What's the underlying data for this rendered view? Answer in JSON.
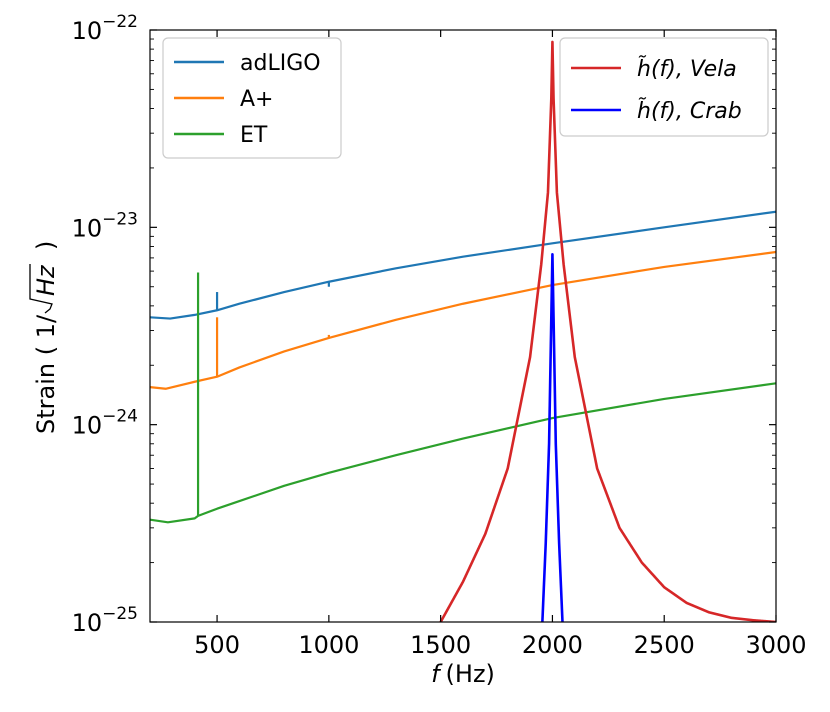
{
  "chart_data": {
    "type": "line",
    "title": "",
    "xlabel": "f (Hz)",
    "xlabel_var": "f",
    "xlabel_unit": "(Hz)",
    "ylabel": "Strain ( 1/ √Hz )",
    "ylabel_prefix": "Strain ( 1/",
    "ylabel_radicand": "Hz",
    "ylabel_suffix": ")",
    "xlim": [
      200,
      3000
    ],
    "ylim": [
      1e-25,
      1e-22
    ],
    "yscale": "log",
    "grid": false,
    "x_ticks": [
      500,
      1000,
      1500,
      2000,
      2500,
      3000
    ],
    "x_tick_labels": [
      "500",
      "1000",
      "1500",
      "2000",
      "2500",
      "3000"
    ],
    "y_ticks": [
      1e-25,
      1e-24,
      1e-23,
      1e-22
    ],
    "y_tick_labels": [
      {
        "base": "10",
        "exp": "−25"
      },
      {
        "base": "10",
        "exp": "−24"
      },
      {
        "base": "10",
        "exp": "−23"
      },
      {
        "base": "10",
        "exp": "−22"
      }
    ],
    "legends": [
      {
        "placement": "top-left",
        "entries": [
          "adLIGO",
          "A+",
          "ET"
        ]
      },
      {
        "placement": "top-right",
        "entries": [
          "h̃(f), Vela",
          "h̃(f), Crab"
        ]
      }
    ],
    "series": [
      {
        "name": "adLIGO",
        "color": "#1f77b4",
        "x": [
          200,
          290,
          400,
          500,
          600,
          800,
          1000,
          1300,
          1600,
          2000,
          2500,
          3000
        ],
        "y": [
          3.5e-24,
          3.45e-24,
          3.6e-24,
          3.8e-24,
          4.1e-24,
          4.7e-24,
          5.3e-24,
          6.2e-24,
          7.1e-24,
          8.3e-24,
          1e-23,
          1.2e-23
        ],
        "spikes": [
          {
            "x": 500,
            "y": 4.7e-24
          },
          {
            "x": 1000,
            "y": 5e-24
          }
        ]
      },
      {
        "name": "A+",
        "color": "#ff7f0e",
        "x": [
          200,
          270,
          400,
          500,
          600,
          800,
          1000,
          1300,
          1600,
          2000,
          2500,
          3000
        ],
        "y": [
          1.55e-24,
          1.52e-24,
          1.65e-24,
          1.75e-24,
          1.95e-24,
          2.35e-24,
          2.75e-24,
          3.4e-24,
          4.1e-24,
          5.1e-24,
          6.3e-24,
          7.5e-24
        ],
        "spikes": [
          {
            "x": 500,
            "y": 3.5e-24
          },
          {
            "x": 1000,
            "y": 2.85e-24
          }
        ]
      },
      {
        "name": "ET",
        "color": "#2ca02c",
        "x": [
          200,
          280,
          400,
          415,
          500,
          600,
          800,
          1000,
          1300,
          1600,
          2000,
          2500,
          3000
        ],
        "y": [
          3.3e-25,
          3.2e-25,
          3.35e-25,
          3.45e-25,
          3.75e-25,
          4.1e-25,
          4.9e-25,
          5.7e-25,
          7e-25,
          8.5e-25,
          1.08e-24,
          1.35e-24,
          1.62e-24
        ],
        "spikes": [
          {
            "x": 415,
            "y": 5.9e-24
          }
        ]
      },
      {
        "name": "h̃(f), Vela",
        "color": "#d62728",
        "center": 2000,
        "peak": 8.7e-23,
        "x": [
          1500,
          1600,
          1700,
          1800,
          1900,
          1950,
          1980,
          1995,
          2000,
          2005,
          2020,
          2050,
          2100,
          2200,
          2300,
          2400,
          2500,
          2600,
          2700,
          2800,
          2900,
          2950,
          3000
        ],
        "y": [
          1e-25,
          1.6e-25,
          2.8e-25,
          6e-25,
          2.2e-24,
          6.5e-24,
          1.5e-23,
          4.5e-23,
          8.7e-23,
          4.5e-23,
          1.5e-23,
          6.5e-24,
          2.2e-24,
          6e-25,
          3e-25,
          2e-25,
          1.5e-25,
          1.25e-25,
          1.12e-25,
          1.05e-25,
          1.02e-25,
          1.01e-25,
          1e-25
        ]
      },
      {
        "name": "h̃(f), Crab",
        "color": "#0000ff",
        "center": 2000,
        "peak": 7.3e-24,
        "x": [
          1955,
          1970,
          1985,
          1995,
          2000,
          2005,
          2015,
          2030,
          2045
        ],
        "y": [
          1e-25,
          2.5e-25,
          8e-25,
          3.5e-24,
          7.3e-24,
          3.5e-24,
          8e-25,
          2.5e-25,
          1e-25
        ]
      }
    ]
  }
}
